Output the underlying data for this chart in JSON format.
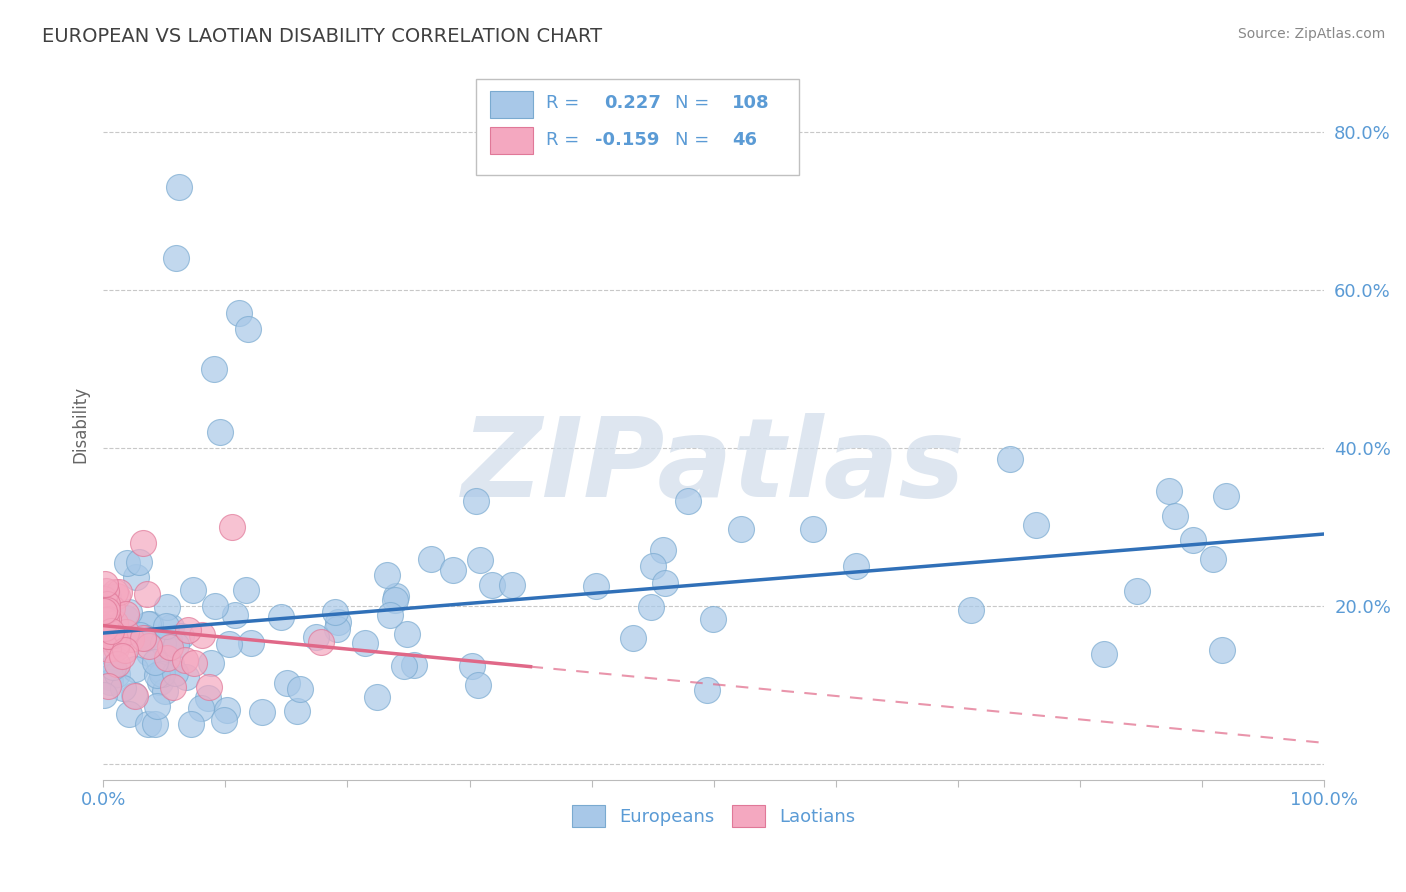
{
  "title": "EUROPEAN VS LAOTIAN DISABILITY CORRELATION CHART",
  "source_text": "Source: ZipAtlas.com",
  "ylabel": "Disability",
  "xlim": [
    0.0,
    1.0
  ],
  "ylim": [
    -0.02,
    0.88
  ],
  "xticks": [
    0.0,
    0.1,
    0.2,
    0.3,
    0.4,
    0.5,
    0.6,
    0.7,
    0.8,
    0.9,
    1.0
  ],
  "xticklabels": [
    "0.0%",
    "",
    "",
    "",
    "",
    "",
    "",
    "",
    "",
    "",
    "100.0%"
  ],
  "ytick_positions": [
    0.0,
    0.2,
    0.4,
    0.6,
    0.8
  ],
  "yticklabels": [
    "",
    "20.0%",
    "40.0%",
    "60.0%",
    "80.0%"
  ],
  "european_R": 0.227,
  "european_N": 108,
  "laotian_R": -0.159,
  "laotian_N": 46,
  "european_color": "#a8c8e8",
  "laotian_color": "#f4a8c0",
  "european_edge_color": "#7aaad0",
  "laotian_edge_color": "#e07898",
  "trendline_european_color": "#3070b8",
  "trendline_laotian_color": "#e06888",
  "watermark_color": "#d0dcea",
  "background_color": "#ffffff",
  "grid_color": "#c8c8c8",
  "title_color": "#404040",
  "tick_label_color": "#5b9bd5",
  "legend_text_color": "#5b9bd5",
  "source_color": "#888888",
  "seed": 7
}
